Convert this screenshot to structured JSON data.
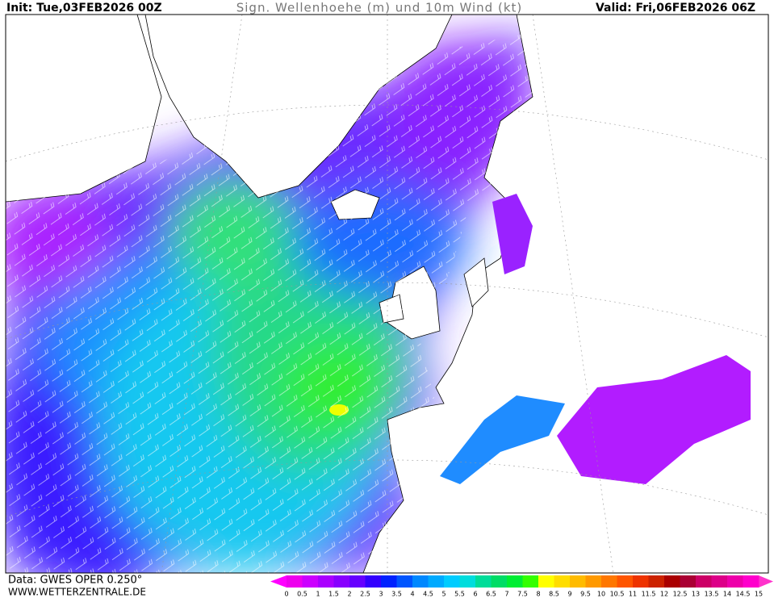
{
  "header": {
    "init": "Init: Tue,03FEB2026 00Z",
    "title": "Sign. Wellenhoehe (m) und 10m Wind (kt)",
    "valid": "Valid: Fri,06FEB2026 06Z"
  },
  "footer": {
    "data": "Data: GWES OPER 0.250°",
    "website": "WWW.WETTERZENTRALE.DE"
  },
  "legend": {
    "labels": [
      0,
      0.5,
      1,
      1.5,
      2,
      2.5,
      3,
      3.5,
      4,
      4.5,
      5,
      5.5,
      6,
      6.5,
      7,
      7.5,
      8,
      8.5,
      9,
      9.5,
      10,
      10.5,
      11,
      11.5,
      12,
      12.5,
      13,
      13.5,
      14,
      14.5,
      15
    ],
    "colors": [
      "#ee00ee",
      "#cc00ff",
      "#aa00ff",
      "#8800ff",
      "#6600ff",
      "#3300ff",
      "#0022ff",
      "#0055ff",
      "#0088ff",
      "#00aaff",
      "#00ccff",
      "#00dddd",
      "#00dd99",
      "#00dd66",
      "#00ee33",
      "#33ff00",
      "#ffff00",
      "#ffdd00",
      "#ffbb00",
      "#ff9900",
      "#ff7700",
      "#ff5500",
      "#ee3300",
      "#cc2200",
      "#aa0000",
      "#aa0033",
      "#cc0066",
      "#dd0088",
      "#ee00aa",
      "#ff00cc"
    ],
    "under_color": "#ff00ff",
    "over_color": "#ff33cc"
  }
}
